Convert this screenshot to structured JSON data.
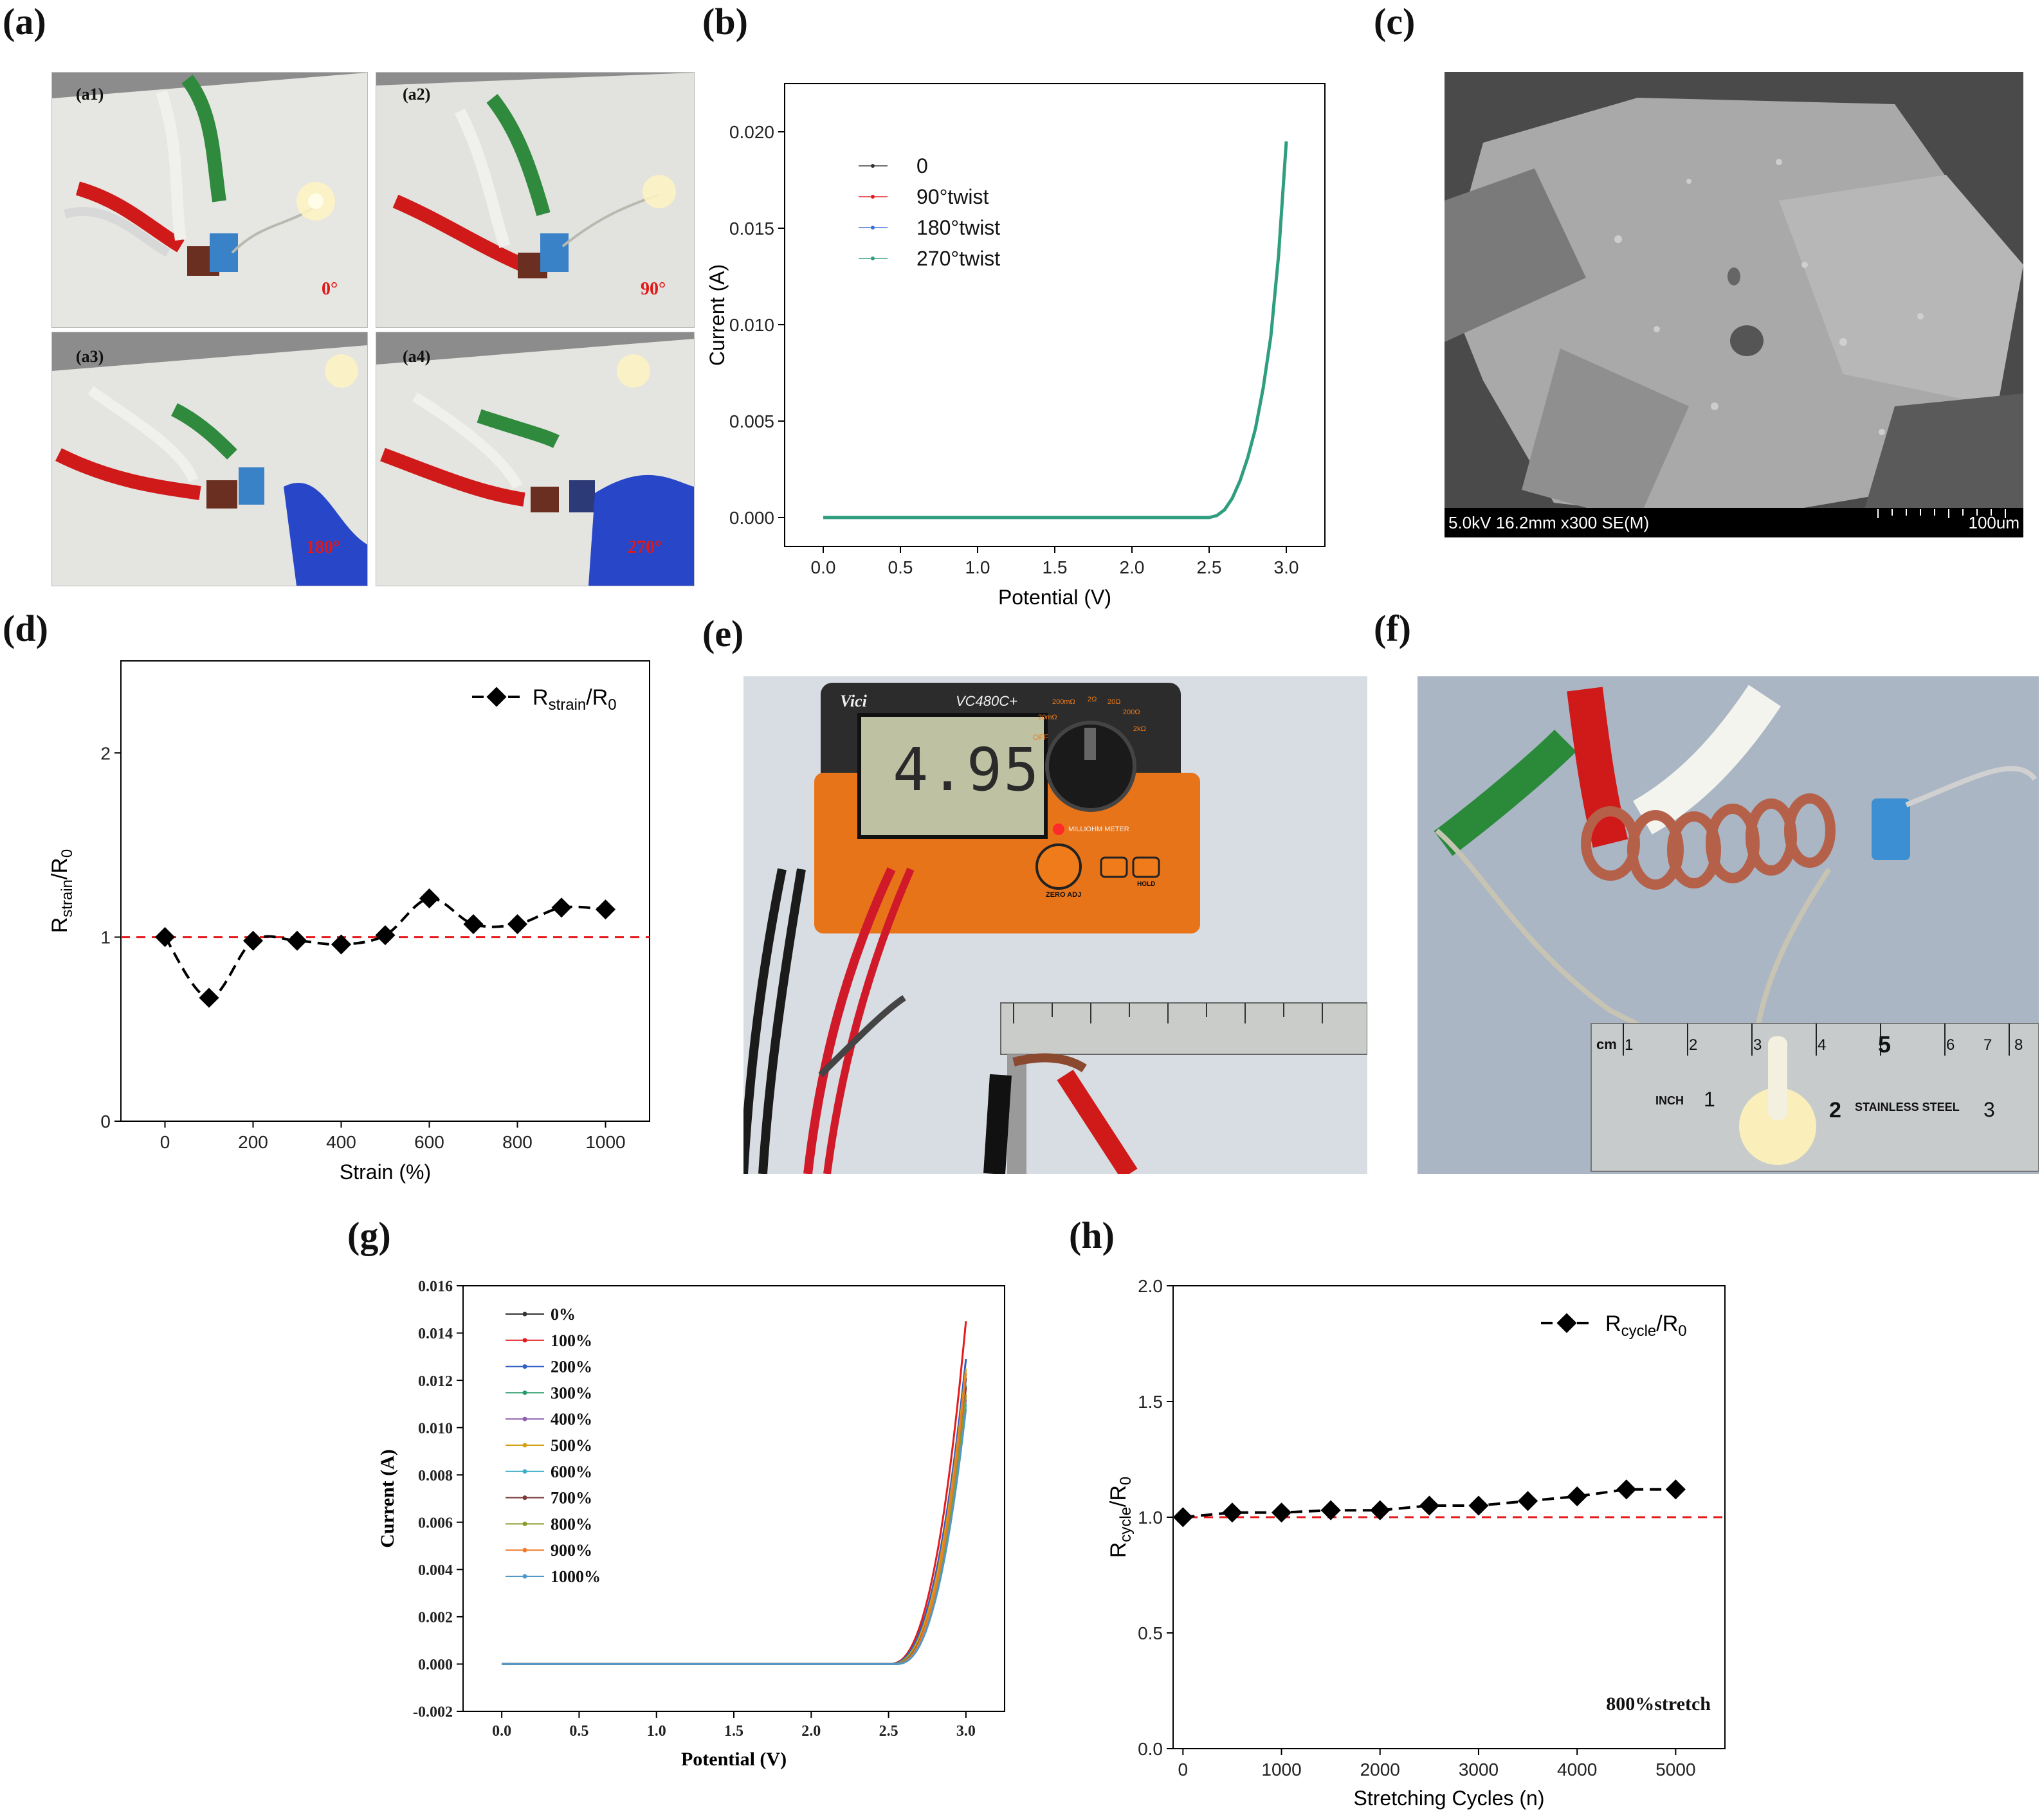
{
  "panels": {
    "a": "(a)",
    "b": "(b)",
    "c": "(c)",
    "d": "(d)",
    "e": "(e)",
    "f": "(f)",
    "g": "(g)",
    "h": "(h)"
  },
  "photos_a": [
    {
      "sub": "(a1)",
      "angle": "0°"
    },
    {
      "sub": "(a2)",
      "angle": "90°"
    },
    {
      "sub": "(a3)",
      "angle": "180°"
    },
    {
      "sub": "(a4)",
      "angle": "270°"
    }
  ],
  "sem": {
    "info": "5.0kV 16.2mm x300 SE(M)",
    "scale": "100um"
  },
  "meter": {
    "brand": "Vici",
    "model": "VC480C+",
    "reading": "4.95",
    "label": "MILLIOHM METER",
    "zero": "ZERO ADJ",
    "hold": "HOLD",
    "ranges": [
      "OFF",
      "20mΩ",
      "200mΩ",
      "2Ω",
      "20Ω",
      "200Ω",
      "2kΩ"
    ]
  },
  "ruler_f": {
    "cm": "cm",
    "inch": "INCH",
    "steel": "STAINLESS STEEL",
    "cm_nums": [
      "1",
      "2",
      "3",
      "4",
      "5",
      "6",
      "7",
      "8"
    ],
    "in_nums": [
      "1",
      "2",
      "3"
    ]
  },
  "colors": {
    "green": "#2e9e7e",
    "red": "#e41a1c",
    "dash_ref": "#e41a1c"
  },
  "chart_data": [
    {
      "id": "b",
      "type": "line",
      "xlabel": "Potential (V)",
      "ylabel": "Current (A)",
      "xlim": [
        -0.25,
        3.25
      ],
      "ylim": [
        -0.0015,
        0.0225
      ],
      "xticks": [
        0.0,
        0.5,
        1.0,
        1.5,
        2.0,
        2.5,
        3.0
      ],
      "xticklabels": [
        "0.0",
        "0.5",
        "1.0",
        "1.5",
        "2.0",
        "2.5",
        "3.0"
      ],
      "yticks": [
        0.0,
        0.005,
        0.01,
        0.015,
        0.02
      ],
      "yticklabels": [
        "0.000",
        "0.005",
        "0.010",
        "0.015",
        "0.020"
      ],
      "legend": "top-left",
      "series": [
        {
          "name": "0",
          "color": "#333333"
        },
        {
          "name": "90°twist",
          "color": "#e41a1c"
        },
        {
          "name": "180°twist",
          "color": "#3a6fd8"
        },
        {
          "name": "270°twist",
          "color": "#2e9e7e"
        }
      ],
      "x": [
        0.0,
        0.5,
        1.0,
        1.5,
        2.0,
        2.5,
        2.55,
        2.6,
        2.65,
        2.7,
        2.75,
        2.8,
        2.85,
        2.9,
        2.95,
        3.0
      ],
      "y": [
        0.0,
        0.0,
        0.0,
        0.0,
        0.0,
        0.0,
        0.0001,
        0.0004,
        0.001,
        0.0019,
        0.0031,
        0.0046,
        0.0067,
        0.0094,
        0.0136,
        0.0195
      ]
    },
    {
      "id": "d",
      "type": "line",
      "xlabel": "Strain (%)",
      "ylabel": "Rstrain/R0",
      "xlim": [
        -100,
        1100
      ],
      "ylim": [
        0,
        2.5
      ],
      "xticks": [
        0,
        200,
        400,
        600,
        800,
        1000
      ],
      "yticks": [
        0,
        1,
        2
      ],
      "legend": "top-right",
      "series": [
        {
          "name": "Rstrain/R0",
          "color": "#000000",
          "x": [
            0,
            100,
            200,
            300,
            400,
            500,
            600,
            700,
            800,
            900,
            1000
          ],
          "values": [
            1.0,
            0.67,
            0.98,
            0.98,
            0.96,
            1.01,
            1.21,
            1.07,
            1.07,
            1.16,
            1.15
          ]
        }
      ],
      "reference_line": 1.0
    },
    {
      "id": "g",
      "type": "line",
      "xlabel": "Potential (V)",
      "ylabel": "Current (A)",
      "xlim": [
        -0.25,
        3.25
      ],
      "ylim": [
        -0.002,
        0.016
      ],
      "xticks": [
        0.0,
        0.5,
        1.0,
        1.5,
        2.0,
        2.5,
        3.0
      ],
      "xticklabels": [
        "0.0",
        "0.5",
        "1.0",
        "1.5",
        "2.0",
        "2.5",
        "3.0"
      ],
      "yticks": [
        -0.002,
        0.0,
        0.002,
        0.004,
        0.006,
        0.008,
        0.01,
        0.012,
        0.014,
        0.016
      ],
      "yticklabels": [
        "-0.002",
        "0.000",
        "0.002",
        "0.004",
        "0.006",
        "0.008",
        "0.010",
        "0.012",
        "0.014",
        "0.016"
      ],
      "legend": "top-left",
      "series": [
        {
          "name": "0%",
          "color": "#333333",
          "vmax": 0.0121
        },
        {
          "name": "100%",
          "color": "#e41a1c",
          "vmax": 0.0145
        },
        {
          "name": "200%",
          "color": "#2f5fc4",
          "vmax": 0.0129
        },
        {
          "name": "300%",
          "color": "#2a9a6a",
          "vmax": 0.0118
        },
        {
          "name": "400%",
          "color": "#8e5fae",
          "vmax": 0.0112
        },
        {
          "name": "500%",
          "color": "#d4a017",
          "vmax": 0.0125
        },
        {
          "name": "600%",
          "color": "#3cb0c8",
          "vmax": 0.011
        },
        {
          "name": "700%",
          "color": "#7a3a3a",
          "vmax": 0.0117
        },
        {
          "name": "800%",
          "color": "#8a9a2a",
          "vmax": 0.0114
        },
        {
          "name": "900%",
          "color": "#ef7b2a",
          "vmax": 0.0123
        },
        {
          "name": "1000%",
          "color": "#4f98c9",
          "vmax": 0.0108
        }
      ]
    },
    {
      "id": "h",
      "type": "line",
      "xlabel": "Stretching Cycles (n)",
      "ylabel": "Rcycle/R0",
      "xlim": [
        -100,
        5500
      ],
      "ylim": [
        0,
        2.0
      ],
      "xticks": [
        0,
        1000,
        2000,
        3000,
        4000,
        5000
      ],
      "yticks": [
        0.0,
        0.5,
        1.0,
        1.5,
        2.0
      ],
      "yticklabels": [
        "0.0",
        "0.5",
        "1.0",
        "1.5",
        "2.0"
      ],
      "legend": "top-right",
      "annotation": "800%stretch",
      "series": [
        {
          "name": "Rcycle/R0",
          "color": "#000000",
          "x": [
            0,
            500,
            1000,
            1500,
            2000,
            2500,
            3000,
            3500,
            4000,
            4500,
            5000
          ],
          "values": [
            1.0,
            1.02,
            1.02,
            1.03,
            1.03,
            1.05,
            1.05,
            1.07,
            1.09,
            1.12,
            1.12
          ]
        }
      ],
      "reference_line": 1.0
    }
  ]
}
